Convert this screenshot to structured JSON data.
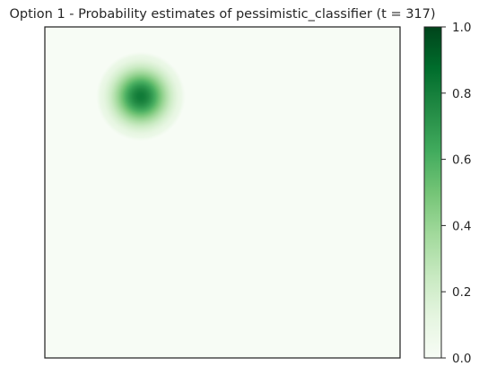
{
  "chart_data": {
    "type": "heatmap",
    "title": "Option 1 - Probability estimates of pessimistic_classifier (t = 317)",
    "xlabel": "",
    "ylabel": "",
    "x_ticks_shown": false,
    "y_ticks_shown": false,
    "grid": false,
    "colormap": "Greens",
    "colormap_stops": [
      "#f7fcf5",
      "#e5f5e0",
      "#c7e9c0",
      "#a1d99b",
      "#74c476",
      "#41ab5d",
      "#238b45",
      "#006d2c",
      "#00441b"
    ],
    "value_range": [
      0,
      1
    ],
    "field": {
      "background_value": 0.0,
      "blobs": [
        {
          "center": [
            0.27,
            0.21
          ],
          "radius": 0.06,
          "peak_value": 0.82
        }
      ]
    },
    "colorbar": {
      "placement": "right",
      "ticks": [
        {
          "value": 0.0,
          "label": "0.0"
        },
        {
          "value": 0.2,
          "label": "0.2"
        },
        {
          "value": 0.4,
          "label": "0.4"
        },
        {
          "value": 0.6,
          "label": "0.6"
        },
        {
          "value": 0.8,
          "label": "0.8"
        },
        {
          "value": 1.0,
          "label": "1.0"
        }
      ]
    }
  }
}
